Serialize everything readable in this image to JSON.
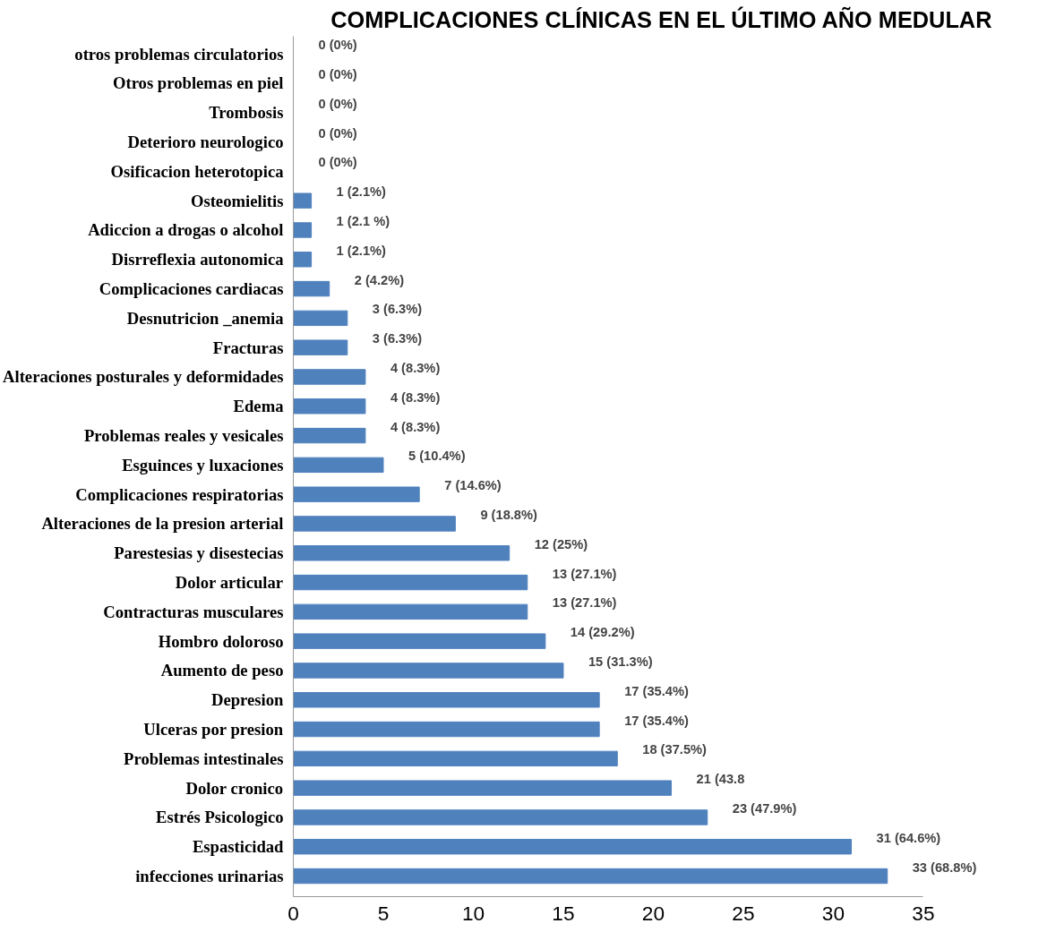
{
  "chart_data": {
    "type": "bar",
    "orientation": "horizontal",
    "title": "COMPLICACIONES CLÍNICAS EN EL ÚLTIMO AÑO MEDULAR",
    "categories": [
      "otros problemas circulatorios",
      "Otros problemas en piel",
      "Trombosis",
      "Deterioro neurologico",
      "Osificacion heterotopica",
      "Osteomielitis",
      "Adiccion a drogas o alcohol",
      "Disrreflexia autonomica",
      "Complicaciones cardiacas",
      "Desnutricion _anemia",
      "Fracturas",
      "Alteraciones posturales y deformidades",
      "Edema",
      "Problemas reales y vesicales",
      "Esguinces y luxaciones",
      "Complicaciones respiratorias",
      "Alteraciones de la presion arterial",
      "Parestesias y disestecias",
      "Dolor articular",
      "Contracturas musculares",
      "Hombro doloroso",
      "Aumento de peso",
      "Depresion",
      "Ulceras por presion",
      "Problemas intestinales",
      "Dolor cronico",
      "Estrés Psicologico",
      "Espasticidad",
      "infecciones urinarias"
    ],
    "values": [
      0,
      0,
      0,
      0,
      0,
      1,
      1,
      1,
      2,
      3,
      3,
      4,
      4,
      4,
      5,
      7,
      9,
      12,
      13,
      13,
      14,
      15,
      17,
      17,
      18,
      21,
      23,
      31,
      33
    ],
    "value_labels": [
      "0 (0%)",
      "0  (0%)",
      "0 (0%)",
      "0  (0%)",
      "0  (0%)",
      "1 (2.1%)",
      "1 (2.1 %)",
      "1 (2.1%)",
      "2 (4.2%)",
      "3 (6.3%)",
      "3  (6.3%)",
      "4  (8.3%)",
      "4  (8.3%)",
      "4  (8.3%)",
      "5 (10.4%)",
      "7 (14.6%)",
      "9 (18.8%)",
      "12 (25%)",
      "13  (27.1%)",
      "13  (27.1%)",
      "14 (29.2%)",
      "15  (31.3%)",
      "17 (35.4%)",
      "17 (35.4%)",
      "18  (37.5%)",
      "21 (43.8",
      "23 (47.9%)",
      "31  (64.6%)",
      "33 (68.8%)"
    ],
    "color": "#4f81bd",
    "xlim": [
      0,
      35
    ],
    "xticks": [
      0,
      5,
      10,
      15,
      20,
      25,
      30,
      35
    ],
    "grid": false
  }
}
